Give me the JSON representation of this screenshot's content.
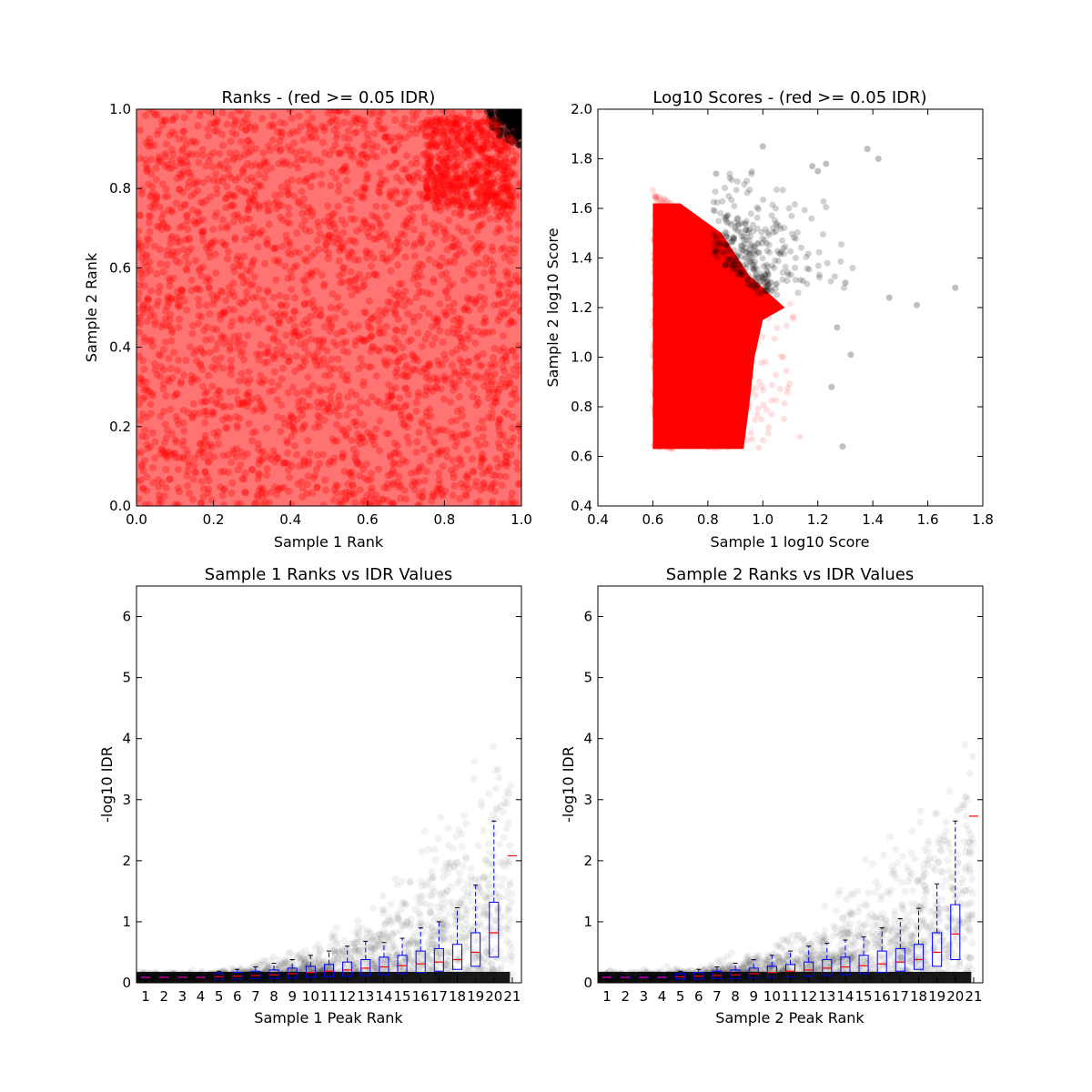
{
  "figure": {
    "background": "#ffffff",
    "colors": {
      "pass": "#ff0000",
      "fail": "#000000",
      "box": "#0000ff",
      "median": "#ff0000"
    }
  },
  "chart_data": [
    {
      "type": "scatter",
      "title": "Ranks - (red >= 0.05 IDR)",
      "xlabel": "Sample 1 Rank",
      "ylabel": "Sample 2 Rank",
      "xlim": [
        0.0,
        1.0
      ],
      "ylim": [
        0.0,
        1.0
      ],
      "xticks": [
        "0.0",
        "0.2",
        "0.4",
        "0.6",
        "0.8",
        "1.0"
      ],
      "yticks": [
        "0.0",
        "0.2",
        "0.4",
        "0.6",
        "0.8",
        "1.0"
      ],
      "series": [
        {
          "color": "#ff0000",
          "description_values": {
            "x_range": [
              0.0,
              1.0
            ],
            "y_range": [
              0.0,
              1.0
            ]
          }
        },
        {
          "color": "#000000",
          "points": [
            [
              0.97,
              0.99
            ],
            [
              0.98,
              0.97
            ],
            [
              0.99,
              0.99
            ],
            [
              0.95,
              0.995
            ],
            [
              0.99,
              0.95
            ],
            [
              0.96,
              0.98
            ],
            [
              0.985,
              0.985
            ],
            [
              0.94,
              0.99
            ],
            [
              0.99,
              0.93
            ],
            [
              0.975,
              0.96
            ],
            [
              0.92,
              0.995
            ],
            [
              0.995,
              0.91
            ]
          ]
        }
      ]
    },
    {
      "type": "scatter",
      "title": "Log10 Scores - (red >= 0.05 IDR)",
      "xlabel": "Sample 1 log10 Score",
      "ylabel": "Sample 2 log10 Score",
      "xlim": [
        0.4,
        1.8
      ],
      "ylim": [
        0.4,
        2.0
      ],
      "xticks": [
        "0.4",
        "0.6",
        "0.8",
        "1.0",
        "1.2",
        "1.4",
        "1.6",
        "1.8"
      ],
      "yticks": [
        "0.4",
        "0.6",
        "0.8",
        "1.0",
        "1.2",
        "1.4",
        "1.6",
        "1.8",
        "2.0"
      ],
      "series": [
        {
          "color": "#ff0000",
          "description_values": {
            "x_range": [
              0.6,
              1.15
            ],
            "y_range": [
              0.63,
              1.7
            ]
          }
        },
        {
          "color": "#000000",
          "points": [
            [
              1.0,
              1.85
            ],
            [
              1.38,
              1.84
            ],
            [
              1.42,
              1.8
            ],
            [
              1.18,
              1.77
            ],
            [
              1.2,
              1.75
            ],
            [
              1.23,
              1.78
            ],
            [
              0.83,
              1.74
            ],
            [
              1.7,
              1.28
            ],
            [
              1.56,
              1.21
            ],
            [
              1.46,
              1.24
            ],
            [
              1.3,
              1.3
            ],
            [
              1.32,
              1.01
            ],
            [
              1.29,
              0.64
            ],
            [
              1.25,
              0.88
            ],
            [
              1.27,
              1.12
            ]
          ]
        }
      ]
    },
    {
      "type": "box",
      "title": "Sample 1 Ranks vs IDR Values",
      "xlabel": "Sample 1 Peak Rank",
      "ylabel": "-log10 IDR",
      "ylim": [
        0,
        6.5
      ],
      "yticks": [
        "0",
        "1",
        "2",
        "3",
        "4",
        "5",
        "6"
      ],
      "categories": [
        "1",
        "2",
        "3",
        "4",
        "5",
        "6",
        "7",
        "8",
        "9",
        "10",
        "11",
        "12",
        "13",
        "14",
        "15",
        "16",
        "17",
        "18",
        "19",
        "20",
        "21"
      ],
      "boxes": [
        {
          "q1": 0.08,
          "median": 0.09,
          "q3": 0.1,
          "whisker_low": 0.07,
          "whisker_high": 0.11
        },
        {
          "q1": 0.08,
          "median": 0.09,
          "q3": 0.1,
          "whisker_low": 0.07,
          "whisker_high": 0.11
        },
        {
          "q1": 0.08,
          "median": 0.09,
          "q3": 0.1,
          "whisker_low": 0.07,
          "whisker_high": 0.11
        },
        {
          "q1": 0.08,
          "median": 0.09,
          "q3": 0.1,
          "whisker_low": 0.07,
          "whisker_high": 0.11
        },
        {
          "q1": 0.06,
          "median": 0.1,
          "q3": 0.15,
          "whisker_low": 0.03,
          "whisker_high": 0.19
        },
        {
          "q1": 0.06,
          "median": 0.11,
          "q3": 0.17,
          "whisker_low": 0.03,
          "whisker_high": 0.22
        },
        {
          "q1": 0.07,
          "median": 0.12,
          "q3": 0.19,
          "whisker_low": 0.03,
          "whisker_high": 0.26
        },
        {
          "q1": 0.07,
          "median": 0.13,
          "q3": 0.21,
          "whisker_low": 0.03,
          "whisker_high": 0.32
        },
        {
          "q1": 0.08,
          "median": 0.15,
          "q3": 0.24,
          "whisker_low": 0.03,
          "whisker_high": 0.38
        },
        {
          "q1": 0.09,
          "median": 0.17,
          "q3": 0.27,
          "whisker_low": 0.03,
          "whisker_high": 0.45
        },
        {
          "q1": 0.1,
          "median": 0.19,
          "q3": 0.3,
          "whisker_low": 0.03,
          "whisker_high": 0.52
        },
        {
          "q1": 0.11,
          "median": 0.21,
          "q3": 0.34,
          "whisker_low": 0.03,
          "whisker_high": 0.6
        },
        {
          "q1": 0.12,
          "median": 0.24,
          "q3": 0.38,
          "whisker_low": 0.03,
          "whisker_high": 0.68
        },
        {
          "q1": 0.13,
          "median": 0.26,
          "q3": 0.42,
          "whisker_low": 0.03,
          "whisker_high": 0.66
        },
        {
          "q1": 0.15,
          "median": 0.28,
          "q3": 0.45,
          "whisker_low": 0.03,
          "whisker_high": 0.73
        },
        {
          "q1": 0.17,
          "median": 0.31,
          "q3": 0.52,
          "whisker_low": 0.03,
          "whisker_high": 0.9
        },
        {
          "q1": 0.19,
          "median": 0.34,
          "q3": 0.56,
          "whisker_low": 0.03,
          "whisker_high": 1.0
        },
        {
          "q1": 0.22,
          "median": 0.38,
          "q3": 0.63,
          "whisker_low": 0.03,
          "whisker_high": 1.23
        },
        {
          "q1": 0.27,
          "median": 0.5,
          "q3": 0.82,
          "whisker_low": 0.03,
          "whisker_high": 1.6
        },
        {
          "q1": 0.42,
          "median": 0.82,
          "q3": 1.32,
          "whisker_low": 0.03,
          "whisker_high": 2.65
        },
        {
          "median": 2.08
        }
      ],
      "cloud_max": 4.2
    },
    {
      "type": "box",
      "title": "Sample 2 Ranks vs IDR Values",
      "xlabel": "Sample 2 Peak Rank",
      "ylabel": "-log10 IDR",
      "ylim": [
        0,
        6.5
      ],
      "yticks": [
        "0",
        "1",
        "2",
        "3",
        "4",
        "5",
        "6"
      ],
      "categories": [
        "1",
        "2",
        "3",
        "4",
        "5",
        "6",
        "7",
        "8",
        "9",
        "10",
        "11",
        "12",
        "13",
        "14",
        "15",
        "16",
        "17",
        "18",
        "19",
        "20",
        "21"
      ],
      "boxes": [
        {
          "q1": 0.08,
          "median": 0.09,
          "q3": 0.1,
          "whisker_low": 0.07,
          "whisker_high": 0.11
        },
        {
          "q1": 0.08,
          "median": 0.09,
          "q3": 0.1,
          "whisker_low": 0.07,
          "whisker_high": 0.11
        },
        {
          "q1": 0.08,
          "median": 0.09,
          "q3": 0.1,
          "whisker_low": 0.07,
          "whisker_high": 0.11
        },
        {
          "q1": 0.08,
          "median": 0.09,
          "q3": 0.1,
          "whisker_low": 0.07,
          "whisker_high": 0.11
        },
        {
          "q1": 0.06,
          "median": 0.1,
          "q3": 0.15,
          "whisker_low": 0.03,
          "whisker_high": 0.19
        },
        {
          "q1": 0.06,
          "median": 0.11,
          "q3": 0.17,
          "whisker_low": 0.03,
          "whisker_high": 0.22
        },
        {
          "q1": 0.07,
          "median": 0.12,
          "q3": 0.19,
          "whisker_low": 0.03,
          "whisker_high": 0.26
        },
        {
          "q1": 0.07,
          "median": 0.13,
          "q3": 0.21,
          "whisker_low": 0.03,
          "whisker_high": 0.32
        },
        {
          "q1": 0.08,
          "median": 0.15,
          "q3": 0.24,
          "whisker_low": 0.03,
          "whisker_high": 0.38
        },
        {
          "q1": 0.09,
          "median": 0.17,
          "q3": 0.27,
          "whisker_low": 0.03,
          "whisker_high": 0.45
        },
        {
          "q1": 0.1,
          "median": 0.19,
          "q3": 0.3,
          "whisker_low": 0.03,
          "whisker_high": 0.52
        },
        {
          "q1": 0.11,
          "median": 0.21,
          "q3": 0.34,
          "whisker_low": 0.03,
          "whisker_high": 0.6
        },
        {
          "q1": 0.12,
          "median": 0.24,
          "q3": 0.38,
          "whisker_low": 0.03,
          "whisker_high": 0.65
        },
        {
          "q1": 0.13,
          "median": 0.26,
          "q3": 0.42,
          "whisker_low": 0.03,
          "whisker_high": 0.7
        },
        {
          "q1": 0.15,
          "median": 0.28,
          "q3": 0.45,
          "whisker_low": 0.03,
          "whisker_high": 0.75
        },
        {
          "q1": 0.17,
          "median": 0.31,
          "q3": 0.52,
          "whisker_low": 0.03,
          "whisker_high": 0.9
        },
        {
          "q1": 0.19,
          "median": 0.34,
          "q3": 0.56,
          "whisker_low": 0.03,
          "whisker_high": 1.05
        },
        {
          "q1": 0.22,
          "median": 0.38,
          "q3": 0.63,
          "whisker_low": 0.03,
          "whisker_high": 1.22
        },
        {
          "q1": 0.27,
          "median": 0.5,
          "q3": 0.82,
          "whisker_low": 0.03,
          "whisker_high": 1.62
        },
        {
          "q1": 0.38,
          "median": 0.8,
          "q3": 1.28,
          "whisker_low": 0.03,
          "whisker_high": 2.65
        },
        {
          "median": 2.73
        }
      ],
      "cloud_max": 4.2
    }
  ]
}
